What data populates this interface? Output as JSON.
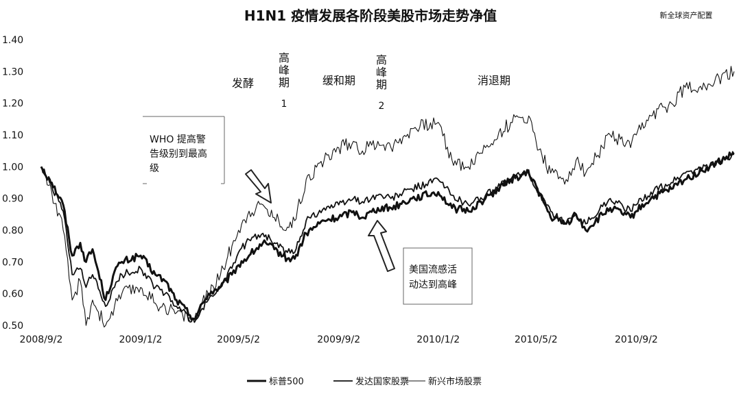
{
  "chart_data": {
    "type": "line",
    "title": "H1N1 疫情发展各阶段美股市场走势净值",
    "watermark": "新全球资产配置",
    "ylim": [
      0.5,
      1.4
    ],
    "yticks": [
      "0.50",
      "0.60",
      "0.70",
      "0.80",
      "0.90",
      "1.00",
      "1.10",
      "1.20",
      "1.30",
      "1.40"
    ],
    "xticks": [
      "2008/9/2",
      "2009/1/2",
      "2009/5/2",
      "2009/9/2",
      "2010/1/2",
      "2010/5/2",
      "2010/9/2"
    ],
    "phases": [
      {
        "label": "发酵"
      },
      {
        "label": "高峰期1"
      },
      {
        "label": "缓和期"
      },
      {
        "label": "高峰期2"
      },
      {
        "label": "消退期"
      }
    ],
    "annotations": [
      {
        "text_lines": [
          "WHO 提高警",
          "告级别到最高",
          "级"
        ]
      },
      {
        "text_lines": [
          "美国流感活",
          "动达到高峰"
        ]
      }
    ],
    "series": [
      {
        "name": "标普500",
        "style": "thick",
        "x": [
          "2008/9/2",
          "2008/9/15",
          "2008/9/29",
          "2008/10/10",
          "2008/10/20",
          "2008/10/27",
          "2008/11/4",
          "2008/11/20",
          "2008/12/1",
          "2008/12/10",
          "2009/1/2",
          "2009/1/20",
          "2009/2/1",
          "2009/2/15",
          "2009/3/9",
          "2009/3/26",
          "2009/4/10",
          "2009/4/24",
          "2009/5/2",
          "2009/5/15",
          "2009/6/1",
          "2009/6/15",
          "2009/7/1",
          "2009/7/10",
          "2009/7/24",
          "2009/8/15",
          "2009/9/2",
          "2009/9/20",
          "2009/10/1",
          "2009/10/20",
          "2009/11/5",
          "2009/12/1",
          "2010/1/2",
          "2010/1/19",
          "2010/2/8",
          "2010/3/1",
          "2010/4/1",
          "2010/4/23",
          "2010/5/2",
          "2010/5/20",
          "2010/6/8",
          "2010/6/20",
          "2010/7/2",
          "2010/8/1",
          "2010/8/26",
          "2010/9/2",
          "2010/9/20",
          "2010/10/15",
          "2010/11/1",
          "2010/12/1",
          "2010/12/31"
        ],
        "values": [
          1.0,
          0.95,
          0.88,
          0.72,
          0.76,
          0.7,
          0.74,
          0.58,
          0.67,
          0.7,
          0.72,
          0.66,
          0.64,
          0.58,
          0.52,
          0.6,
          0.62,
          0.66,
          0.69,
          0.72,
          0.76,
          0.74,
          0.71,
          0.71,
          0.79,
          0.83,
          0.84,
          0.86,
          0.84,
          0.87,
          0.87,
          0.9,
          0.92,
          0.87,
          0.86,
          0.9,
          0.96,
          0.98,
          0.94,
          0.84,
          0.82,
          0.85,
          0.8,
          0.87,
          0.84,
          0.86,
          0.9,
          0.93,
          0.96,
          1.0,
          1.04
        ]
      },
      {
        "name": "发达国家股票",
        "style": "medium",
        "x": [
          "2008/9/2",
          "2008/9/15",
          "2008/9/29",
          "2008/10/10",
          "2008/10/20",
          "2008/10/27",
          "2008/11/4",
          "2008/11/20",
          "2008/12/1",
          "2008/12/10",
          "2009/1/2",
          "2009/1/20",
          "2009/2/1",
          "2009/2/15",
          "2009/3/9",
          "2009/3/26",
          "2009/4/10",
          "2009/4/24",
          "2009/5/2",
          "2009/5/15",
          "2009/6/1",
          "2009/6/15",
          "2009/7/1",
          "2009/7/10",
          "2009/7/24",
          "2009/8/15",
          "2009/9/2",
          "2009/9/20",
          "2009/10/1",
          "2009/10/20",
          "2009/11/5",
          "2009/12/1",
          "2010/1/2",
          "2010/1/19",
          "2010/2/8",
          "2010/3/1",
          "2010/4/1",
          "2010/4/23",
          "2010/5/2",
          "2010/5/20",
          "2010/6/8",
          "2010/6/20",
          "2010/7/2",
          "2010/8/1",
          "2010/8/26",
          "2010/9/2",
          "2010/9/20",
          "2010/10/15",
          "2010/11/1",
          "2010/12/1",
          "2010/12/31"
        ],
        "values": [
          1.0,
          0.94,
          0.86,
          0.66,
          0.68,
          0.62,
          0.66,
          0.56,
          0.62,
          0.66,
          0.68,
          0.62,
          0.6,
          0.56,
          0.51,
          0.58,
          0.62,
          0.68,
          0.73,
          0.77,
          0.79,
          0.76,
          0.73,
          0.73,
          0.83,
          0.87,
          0.88,
          0.9,
          0.89,
          0.91,
          0.9,
          0.93,
          0.96,
          0.91,
          0.88,
          0.91,
          0.96,
          0.99,
          0.93,
          0.86,
          0.82,
          0.85,
          0.82,
          0.9,
          0.86,
          0.88,
          0.92,
          0.95,
          0.98,
          1.0,
          1.04
        ]
      },
      {
        "name": "新兴市场股票",
        "style": "thin",
        "x": [
          "2008/9/2",
          "2008/9/15",
          "2008/9/29",
          "2008/10/10",
          "2008/10/20",
          "2008/10/27",
          "2008/11/4",
          "2008/11/20",
          "2008/12/1",
          "2008/12/10",
          "2009/1/2",
          "2009/1/20",
          "2009/2/1",
          "2009/2/15",
          "2009/3/9",
          "2009/3/26",
          "2009/4/10",
          "2009/4/24",
          "2009/5/2",
          "2009/5/15",
          "2009/6/1",
          "2009/6/15",
          "2009/7/1",
          "2009/7/10",
          "2009/7/24",
          "2009/8/15",
          "2009/9/2",
          "2009/9/20",
          "2009/10/1",
          "2009/10/20",
          "2009/11/5",
          "2009/12/1",
          "2010/1/2",
          "2010/1/19",
          "2010/2/8",
          "2010/3/1",
          "2010/4/1",
          "2010/4/23",
          "2010/5/2",
          "2010/5/20",
          "2010/6/8",
          "2010/6/20",
          "2010/7/2",
          "2010/8/1",
          "2010/8/26",
          "2010/9/2",
          "2010/9/20",
          "2010/10/15",
          "2010/11/1",
          "2010/12/1",
          "2010/12/31"
        ],
        "values": [
          1.0,
          0.92,
          0.8,
          0.58,
          0.64,
          0.5,
          0.58,
          0.5,
          0.56,
          0.6,
          0.62,
          0.57,
          0.56,
          0.54,
          0.52,
          0.6,
          0.66,
          0.75,
          0.8,
          0.86,
          0.88,
          0.84,
          0.81,
          0.83,
          0.96,
          1.02,
          1.06,
          1.08,
          1.05,
          1.08,
          1.06,
          1.12,
          1.14,
          1.02,
          1.0,
          1.06,
          1.14,
          1.16,
          1.08,
          0.98,
          0.96,
          1.02,
          0.98,
          1.1,
          1.06,
          1.1,
          1.16,
          1.2,
          1.25,
          1.26,
          1.3
        ]
      }
    ]
  }
}
